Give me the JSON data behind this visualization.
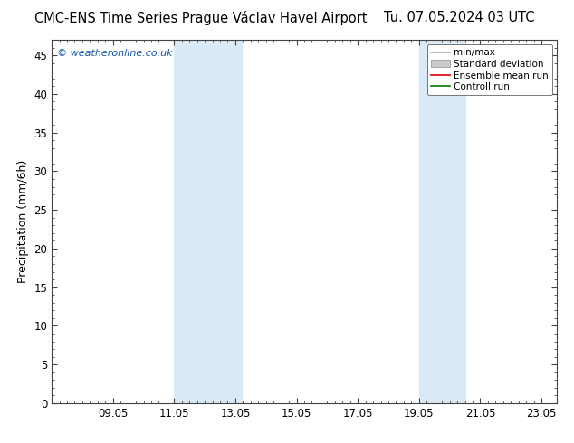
{
  "title_left": "CMC-ENS Time Series Prague Václav Havel Airport",
  "title_right": "Tu. 07.05.2024 03 UTC",
  "ylabel": "Precipitation (mm/6h)",
  "watermark": "© weatheronline.co.uk",
  "ylim": [
    0,
    47
  ],
  "yticks": [
    0,
    5,
    10,
    15,
    20,
    25,
    30,
    35,
    40,
    45
  ],
  "xtick_labels": [
    "09.05",
    "11.05",
    "13.05",
    "15.05",
    "17.05",
    "19.05",
    "21.05",
    "23.05"
  ],
  "xtick_positions": [
    2,
    4,
    6,
    8,
    10,
    12,
    14,
    16
  ],
  "xlim": [
    0,
    16.5
  ],
  "shade_bands": [
    {
      "x_start": 4.0,
      "x_end": 6.2,
      "color": "#daeaf7",
      "alpha": 1.0
    },
    {
      "x_start": 12.0,
      "x_end": 13.5,
      "color": "#daeaf7",
      "alpha": 1.0
    }
  ],
  "background_color": "#ffffff",
  "plot_bg_color": "#ffffff",
  "title_fontsize": 10.5,
  "axis_label_fontsize": 9,
  "tick_fontsize": 8.5,
  "legend_items": [
    {
      "label": "min/max",
      "color": "#aaaaaa",
      "type": "line",
      "linewidth": 1.2
    },
    {
      "label": "Standard deviation",
      "color": "#cccccc",
      "type": "patch"
    },
    {
      "label": "Ensemble mean run",
      "color": "#dd0000",
      "type": "line",
      "linewidth": 1.2
    },
    {
      "label": "Controll run",
      "color": "#007700",
      "type": "line",
      "linewidth": 1.2
    }
  ],
  "watermark_color": "#1155aa",
  "watermark_fontsize": 8,
  "border_color": "#444444",
  "minor_x_step": 0.25,
  "major_x_step": 2.0
}
